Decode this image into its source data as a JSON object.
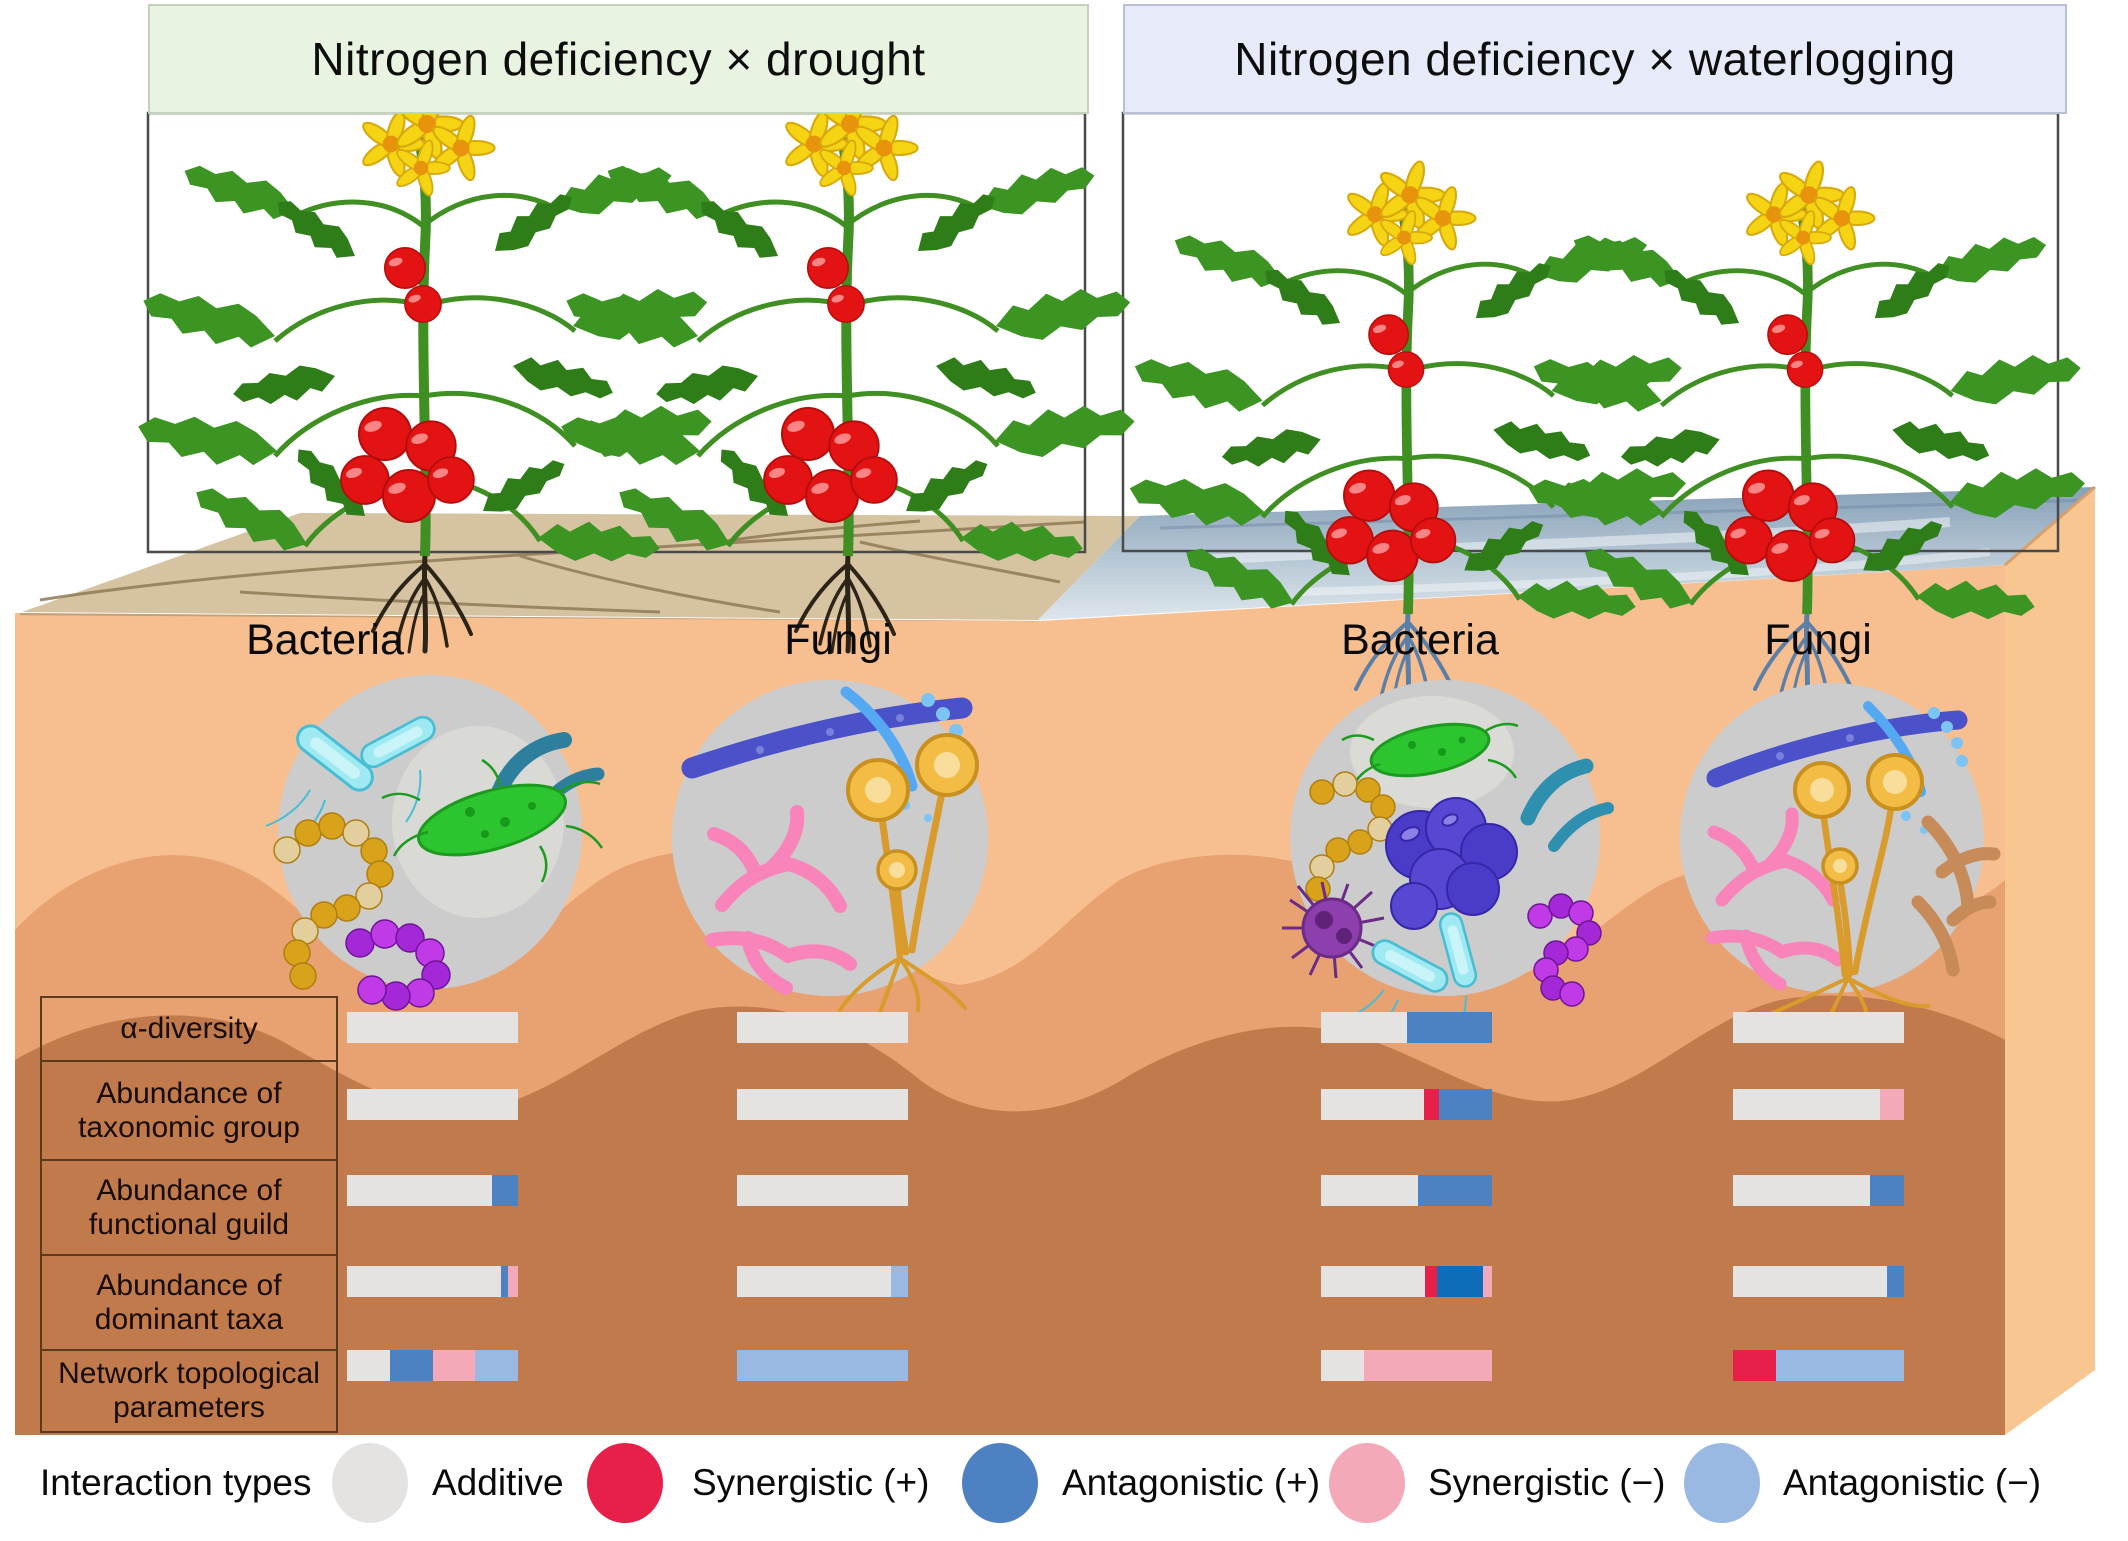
{
  "headers": {
    "left": "Nitrogen deficiency × drought",
    "right": "Nitrogen deficiency × waterlogging"
  },
  "column_labels": [
    "Bacteria",
    "Fungi",
    "Bacteria",
    "Fungi"
  ],
  "row_labels": [
    [
      "α-diversity"
    ],
    [
      "Abundance of",
      "taxonomic group"
    ],
    [
      "Abundance of",
      "functional guild"
    ],
    [
      "Abundance of",
      "dominant taxa"
    ],
    [
      "Network topological",
      "parameters"
    ]
  ],
  "legend": {
    "title": "Interaction types",
    "items": [
      {
        "label": "Additive",
        "color": "#e4e3e1"
      },
      {
        "label": "Synergistic (+)",
        "color": "#e62049"
      },
      {
        "label": "Antagonistic (+)",
        "color": "#4e81c2"
      },
      {
        "label": "Synergistic (−)",
        "color": "#f4a9b9"
      },
      {
        "label": "Antagonistic (−)",
        "color": "#99b8e2"
      }
    ]
  },
  "colors": {
    "additive": "#e4e3e1",
    "synergistic_plus": "#e62049",
    "antagonistic_plus": "#4e81c2",
    "synergistic_minus": "#f4a9b9",
    "antagonistic_minus": "#99b8e2",
    "antagonistic_plus_deep": "#0e6cb8",
    "header_left_bg": "#e9f3e2",
    "header_right_bg": "#e7eaf8",
    "soil_light": "#f7bf90",
    "soil_mid": "#e8a170",
    "soil_dark": "#c17a4c",
    "dry_surface": "#d6c3a2",
    "water": "#9db3c6"
  },
  "chart_data": {
    "type": "bar",
    "orientation": "horizontal-stacked",
    "unit": "percent of interaction type",
    "row_categories": [
      "α-diversity",
      "Abundance of taxonomic group",
      "Abundance of functional guild",
      "Abundance of dominant taxa",
      "Network topological parameters"
    ],
    "legend_position": "bottom",
    "columns": [
      {
        "id": "drought_bacteria",
        "group": "Nitrogen deficiency × drought",
        "microbe": "Bacteria",
        "values": [
          [
            [
              "additive",
              100
            ]
          ],
          [
            [
              "additive",
              100
            ]
          ],
          [
            [
              "additive",
              85
            ],
            [
              "antagonistic_plus",
              15
            ]
          ],
          [
            [
              "additive",
              90
            ],
            [
              "antagonistic_plus",
              4
            ],
            [
              "synergistic_minus",
              6
            ]
          ],
          [
            [
              "additive",
              25
            ],
            [
              "antagonistic_plus",
              25
            ],
            [
              "synergistic_minus",
              25
            ],
            [
              "antagonistic_minus",
              25
            ]
          ]
        ]
      },
      {
        "id": "drought_fungi",
        "group": "Nitrogen deficiency × drought",
        "microbe": "Fungi",
        "values": [
          [
            [
              "additive",
              100
            ]
          ],
          [
            [
              "additive",
              100
            ]
          ],
          [
            [
              "additive",
              100
            ]
          ],
          [
            [
              "additive",
              90
            ],
            [
              "antagonistic_minus",
              10
            ]
          ],
          [
            [
              "antagonistic_minus",
              100
            ]
          ]
        ]
      },
      {
        "id": "waterlogging_bacteria",
        "group": "Nitrogen deficiency × waterlogging",
        "microbe": "Bacteria",
        "values": [
          [
            [
              "additive",
              50
            ],
            [
              "antagonistic_plus",
              50
            ]
          ],
          [
            [
              "additive",
              60
            ],
            [
              "synergistic_plus",
              9
            ],
            [
              "antagonistic_plus",
              31
            ]
          ],
          [
            [
              "additive",
              57
            ],
            [
              "antagonistic_plus",
              43
            ]
          ],
          [
            [
              "additive",
              61
            ],
            [
              "synergistic_plus",
              7
            ],
            [
              "antagonistic_plus_deep",
              27
            ],
            [
              "synergistic_minus",
              5
            ]
          ],
          [
            [
              "additive",
              25
            ],
            [
              "synergistic_minus",
              75
            ]
          ]
        ]
      },
      {
        "id": "waterlogging_fungi",
        "group": "Nitrogen deficiency × waterlogging",
        "microbe": "Fungi",
        "values": [
          [
            [
              "additive",
              100
            ]
          ],
          [
            [
              "additive",
              86
            ],
            [
              "synergistic_minus",
              14
            ]
          ],
          [
            [
              "additive",
              80
            ],
            [
              "antagonistic_plus",
              20
            ]
          ],
          [
            [
              "additive",
              90
            ],
            [
              "antagonistic_plus",
              10
            ]
          ],
          [
            [
              "synergistic_plus",
              25
            ],
            [
              "antagonistic_minus",
              75
            ]
          ]
        ]
      }
    ]
  }
}
